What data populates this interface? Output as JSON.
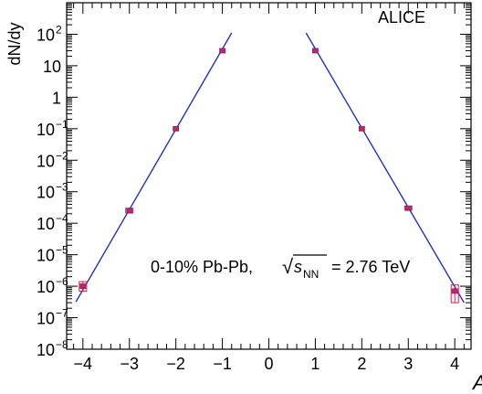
{
  "chart_data": {
    "type": "scatter",
    "title": "",
    "xlabel": "A",
    "ylabel": "dN/dy",
    "xlim": [
      -4.35,
      4.35
    ],
    "ylim": [
      1e-08,
      1000
    ],
    "yscale": "log",
    "grid": false,
    "legend": "none",
    "annotations": {
      "experiment": "ALICE",
      "system_prefix": "0-10% Pb-Pb, ",
      "sqrt_symbol": "√",
      "s_letter": "s",
      "s_subscript": "NN",
      "energy_suffix": " = 2.76 TeV"
    },
    "x_ticks": [
      -4,
      -3,
      -2,
      -1,
      0,
      1,
      2,
      3,
      4
    ],
    "x_tick_labels": [
      "−4",
      "−3",
      "−2",
      "−1",
      "0",
      "1",
      "2",
      "3",
      "4"
    ],
    "y_ticks": [
      {
        "value": 100,
        "base": "10",
        "exp": "2"
      },
      {
        "value": 10,
        "base": "10",
        "exp": ""
      },
      {
        "value": 1,
        "base": "1",
        "exp": ""
      },
      {
        "value": 0.1,
        "base": "10",
        "exp": "−1"
      },
      {
        "value": 0.01,
        "base": "10",
        "exp": "−2"
      },
      {
        "value": 0.001,
        "base": "10",
        "exp": "−3"
      },
      {
        "value": 0.0001,
        "base": "10",
        "exp": "−4"
      },
      {
        "value": 1e-05,
        "base": "10",
        "exp": "−5"
      },
      {
        "value": 1e-06,
        "base": "10",
        "exp": "−6"
      },
      {
        "value": 1e-07,
        "base": "10",
        "exp": "−7"
      },
      {
        "value": 1e-08,
        "base": "10",
        "exp": "−8"
      }
    ],
    "series": [
      {
        "color": "#cc2255",
        "points": [
          {
            "x": -4,
            "y": 1e-06,
            "yerr_low": 3e-07,
            "yerr_high": 4e-07
          },
          {
            "x": -3,
            "y": 0.00025,
            "yerr_low": 4e-05,
            "yerr_high": 5e-05
          },
          {
            "x": -2,
            "y": 0.1,
            "yerr_low": 0,
            "yerr_high": 0
          },
          {
            "x": -1,
            "y": 30,
            "yerr_low": 0,
            "yerr_high": 0
          },
          {
            "x": 1,
            "y": 30,
            "yerr_low": 0,
            "yerr_high": 0
          },
          {
            "x": 2,
            "y": 0.1,
            "yerr_low": 0,
            "yerr_high": 0
          },
          {
            "x": 3,
            "y": 0.0003,
            "yerr_low": 4e-05,
            "yerr_high": 5e-05
          },
          {
            "x": 4,
            "y": 7e-07,
            "yerr_low": 4e-07,
            "yerr_high": 4e-07
          }
        ]
      }
    ],
    "fits": [
      {
        "color": "#2233bb",
        "x": [
          -4.15,
          -0.8
        ],
        "y": [
          3.2e-07,
          110
        ]
      },
      {
        "color": "#2233bb",
        "x": [
          0.8,
          4.2
        ],
        "y": [
          110,
          3e-07
        ]
      }
    ]
  }
}
